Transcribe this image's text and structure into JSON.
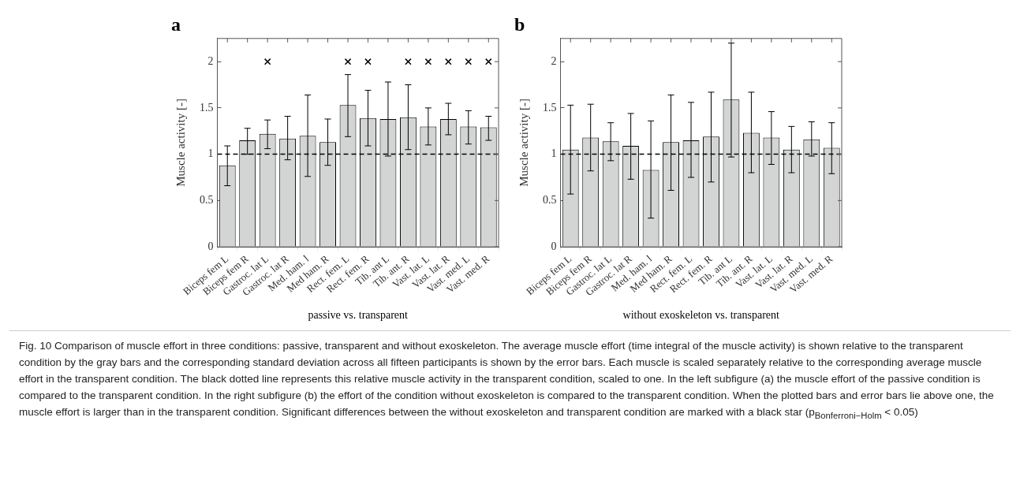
{
  "chart_data": [
    {
      "type": "bar",
      "title": "a",
      "xlabel": "passive vs. transparent",
      "ylabel": "Muscle activity [-]",
      "categories": [
        "Biceps fem L",
        "Biceps fem R",
        "Gastroc. lat L",
        "Gastroc. lat R",
        "Med. ham. l",
        "Med ham. R",
        "Rect. fem. L",
        "Rect. fem. R",
        "Tib. ant L",
        "Tib. ant. R",
        "Vast. lat. L",
        "Vast. lat. R",
        "Vast. med. L",
        "Vast. med. R"
      ],
      "series": [
        {
          "color": "#d3d4d4",
          "values": [
            0.88,
            1.15,
            1.22,
            1.17,
            1.2,
            1.13,
            1.53,
            1.39,
            1.38,
            1.4,
            1.3,
            1.38,
            1.3,
            1.29
          ],
          "errors": [
            [
              0.66,
              1.09
            ],
            [
              1.0,
              1.28
            ],
            [
              1.06,
              1.37
            ],
            [
              0.94,
              1.41
            ],
            [
              0.76,
              1.64
            ],
            [
              0.88,
              1.38
            ],
            [
              1.19,
              1.86
            ],
            [
              1.09,
              1.69
            ],
            [
              0.98,
              1.78
            ],
            [
              1.05,
              1.75
            ],
            [
              1.1,
              1.5
            ],
            [
              1.21,
              1.55
            ],
            [
              1.11,
              1.47
            ],
            [
              1.15,
              1.41
            ]
          ]
        },
        {
          "type": "scatter",
          "color": "#000000",
          "marker": "cross",
          "x": [
            "Gastroc. lat L",
            "Rect. fem. L",
            "Rect. fem. R",
            "Tib. ant. R",
            "Vast. lat. L",
            "Vast. lat. R",
            "Vast. med. L",
            "Vast. med. R"
          ],
          "values": [
            2,
            2,
            2,
            2,
            2,
            2,
            2,
            2
          ]
        }
      ],
      "ylim": [
        0,
        2.25
      ],
      "yticks": [
        0,
        0.5,
        1,
        1.5,
        2
      ],
      "grid": false,
      "legend": false,
      "ref_lines": [
        {
          "axis": "y",
          "value": 1,
          "line_style": "dashed",
          "color": "#000000"
        }
      ]
    },
    {
      "type": "bar",
      "title": "b",
      "xlabel": "without exoskeleton vs. transparent",
      "ylabel": "Muscle activity [-]",
      "categories": [
        "Biceps fem L",
        "Biceps fem R",
        "Gastroc. lat L",
        "Gastroc. lat R",
        "Med. ham. l",
        "Med ham. R",
        "Rect. fem. L",
        "Rect. fem. R",
        "Tib. ant L",
        "Tib. ant. R",
        "Vast. lat. L",
        "Vast. lat. R",
        "Vast. med. L",
        "Vast. med. R"
      ],
      "series": [
        {
          "color": "#d3d4d4",
          "values": [
            1.05,
            1.18,
            1.14,
            1.09,
            0.83,
            1.13,
            1.15,
            1.19,
            1.59,
            1.23,
            1.18,
            1.05,
            1.16,
            1.07
          ],
          "errors": [
            [
              0.57,
              1.53
            ],
            [
              0.82,
              1.54
            ],
            [
              0.93,
              1.34
            ],
            [
              0.73,
              1.44
            ],
            [
              0.31,
              1.36
            ],
            [
              0.61,
              1.64
            ],
            [
              0.75,
              1.56
            ],
            [
              0.7,
              1.67
            ],
            [
              0.97,
              2.2
            ],
            [
              0.8,
              1.67
            ],
            [
              0.89,
              1.46
            ],
            [
              0.8,
              1.3
            ],
            [
              0.98,
              1.35
            ],
            [
              0.79,
              1.34
            ]
          ]
        }
      ],
      "ylim": [
        0,
        2.25
      ],
      "yticks": [
        0,
        0.5,
        1,
        1.5,
        2
      ],
      "grid": false,
      "legend": false,
      "ref_lines": [
        {
          "axis": "y",
          "value": 1,
          "line_style": "dashed",
          "color": "#000000"
        }
      ],
      "annotations": [
        "Fig. 10 Comparison of muscle effort in three conditions: passive, transparent and without exoskeleton. The average muscle effort (time integral of the muscle activity) is shown relative to the transparent condition by the gray bars and the corresponding standard deviation across all fifteen participants is shown by the error bars. Each muscle is scaled separately relative to the corresponding average muscle effort in the transparent condition. The black dotted line represents this relative muscle activity in the transparent condition, scaled to one. In the left subfigure (a) the muscle effort of the passive condition is compared to the transparent condition. In the right subfigure (b) the effort of the condition without exoskeleton is compared to the transparent condition. When the plotted bars and error bars lie above one, the muscle effort is larger than in the transparent condition. Significant differences between the without exoskeleton and transparent condition are marked with a black star (p$_{Bonferroni−Holm}$ < 0.05)"
      ]
    }
  ]
}
